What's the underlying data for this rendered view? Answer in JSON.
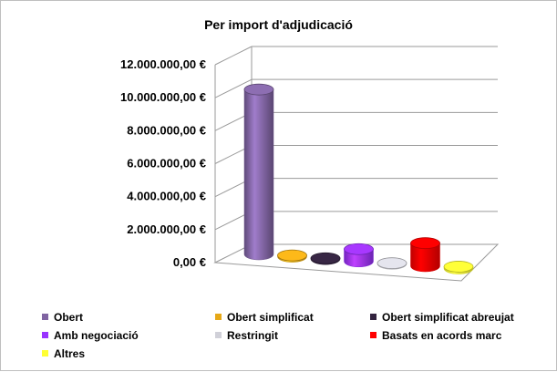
{
  "chart_data": {
    "type": "bar",
    "title": "Per import d'adjudicació",
    "yticks": [
      "0,00 €",
      "2.000.000,00 €",
      "4.000.000,00 €",
      "6.000.000,00 €",
      "8.000.000,00 €",
      "10.000.000,00 €",
      "12.000.000,00 €"
    ],
    "ylim": [
      0,
      12000000
    ],
    "grid": true,
    "legend_position": "bottom",
    "categories": [
      "Obert",
      "Obert simplificat",
      "Obert simplificat abreujat",
      "Amb negociació",
      "Restringit",
      "Basats en acords marc",
      "Altres"
    ],
    "values": [
      10000000,
      80000,
      50000,
      750000,
      40000,
      1400000,
      120000
    ],
    "colors": [
      "#8064a2",
      "#e6a817",
      "#33233f",
      "#9933ff",
      "#d0d0d8",
      "#ff0000",
      "#ffff33"
    ]
  }
}
